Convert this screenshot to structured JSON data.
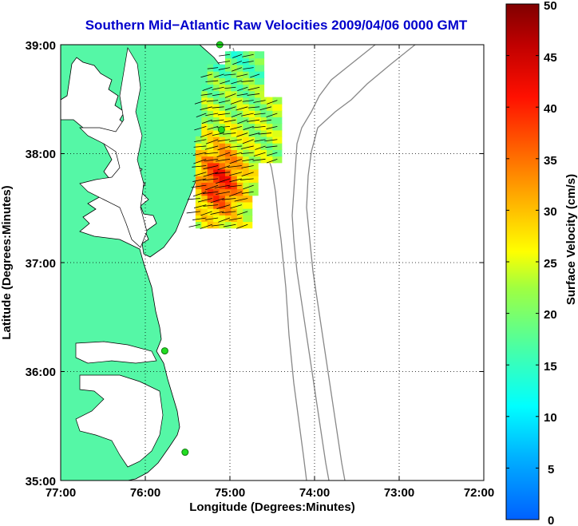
{
  "title": "Southern Mid−Atlantic Raw Velocities 2009/04/06 0000 GMT",
  "x_axis": {
    "label": "Longitude (Degrees:Minutes)",
    "ticks": [
      "77:00",
      "76:00",
      "75:00",
      "74:00",
      "73:00",
      "72:00"
    ]
  },
  "y_axis": {
    "label": "Latitude (Degrees:Minutes)",
    "ticks": [
      "39:00",
      "38:00",
      "37:00",
      "36:00",
      "35:00"
    ]
  },
  "colorbar": {
    "label": "Surface Velocity (cm/s)",
    "ticks": [
      "50",
      "45",
      "40",
      "35",
      "30",
      "25",
      "20",
      "15",
      "10",
      "5",
      "0"
    ],
    "min": 0,
    "max": 50
  },
  "colors": {
    "land": "#55f7a6",
    "water": "#ffffff",
    "title": "#0000cc",
    "station": "#22dd22"
  },
  "map": {
    "lon_range": [
      -77,
      -72
    ],
    "lat_range": [
      35,
      39
    ],
    "grid": "dotted",
    "stations": [
      {
        "lon": -75.12,
        "lat": 39.0
      },
      {
        "lon": -75.1,
        "lat": 38.22
      },
      {
        "lon": -75.77,
        "lat": 36.19
      },
      {
        "lon": -75.53,
        "lat": 35.26
      }
    ]
  }
}
